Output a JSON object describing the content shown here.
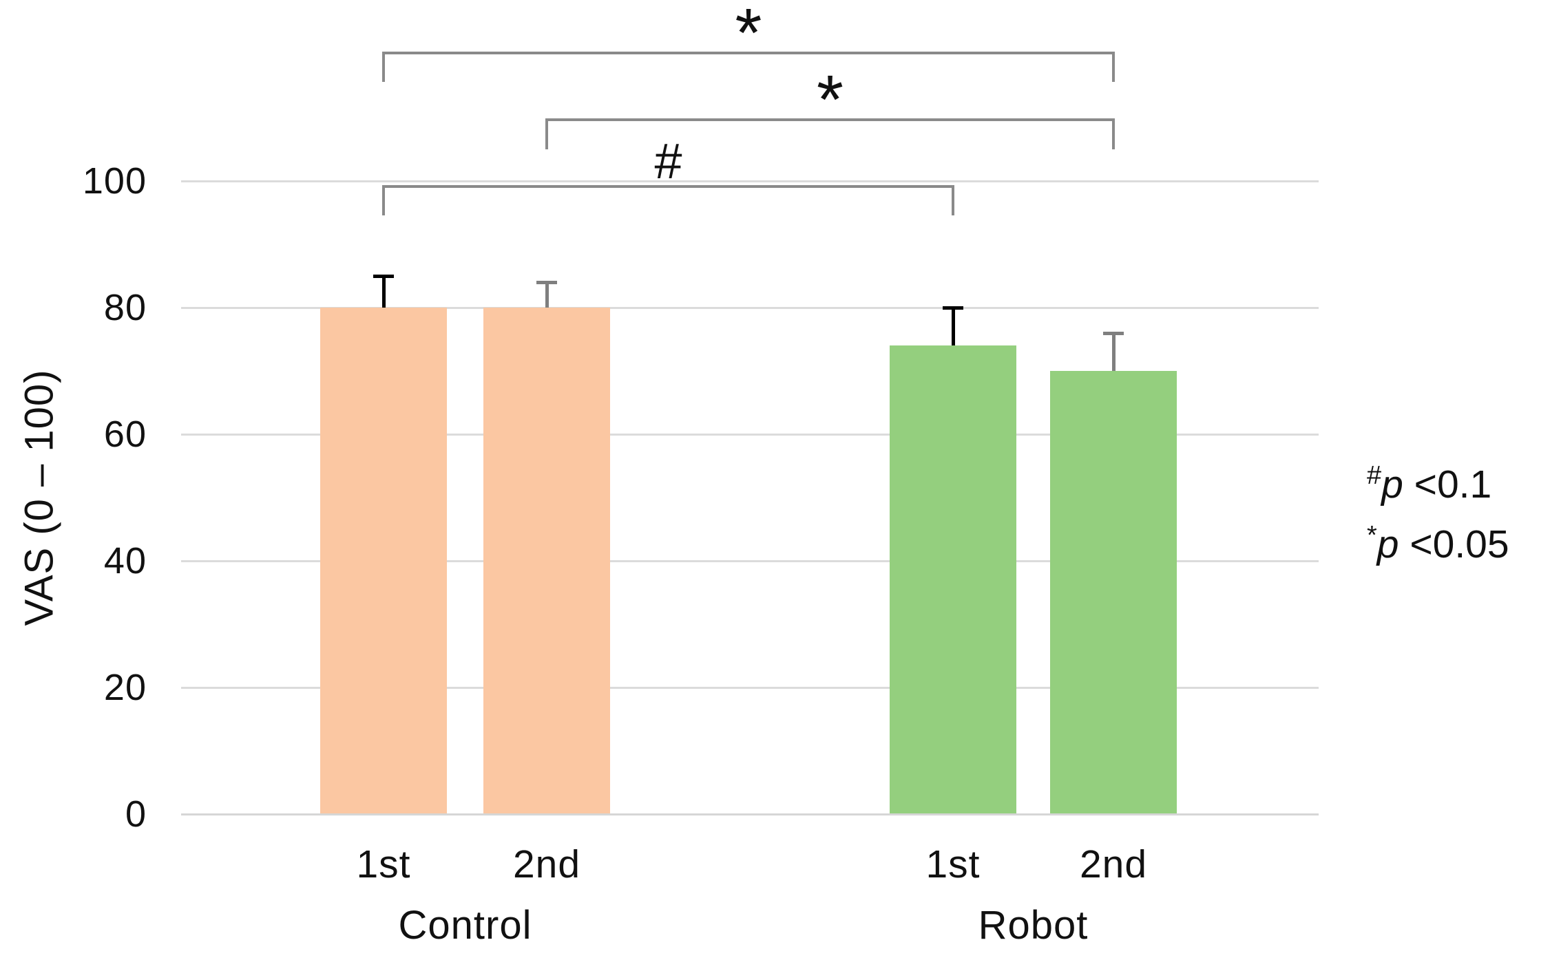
{
  "page": {
    "background": "#ffffff"
  },
  "chart_data": {
    "type": "bar",
    "title": "",
    "xlabel": "",
    "ylabel": "VAS (0 – 100)",
    "ylim": [
      0,
      100
    ],
    "yticks": [
      0,
      20,
      40,
      60,
      80,
      100
    ],
    "grid": true,
    "categories": [
      "Control 1st",
      "Control 2nd",
      "Robot 1st",
      "Robot 2nd"
    ],
    "bar_labels": [
      "1st",
      "2nd",
      "1st",
      "2nd"
    ],
    "groups": [
      {
        "label": "Control",
        "bar_indices": [
          0,
          1
        ]
      },
      {
        "label": "Robot",
        "bar_indices": [
          2,
          3
        ]
      }
    ],
    "series": [
      {
        "name": "VAS",
        "values": [
          80,
          80,
          74,
          70
        ]
      }
    ],
    "error_bars": {
      "type": "upper",
      "values": [
        85,
        84,
        80,
        76
      ]
    },
    "bar_colors": [
      "#FBC7A2",
      "#FBC7A2",
      "#94CF7E",
      "#94CF7E"
    ],
    "error_bar_colors": [
      "#000000",
      "#7F7F7F",
      "#000000",
      "#7F7F7F"
    ],
    "significance": [
      {
        "symbol": "*",
        "between": [
          "Control 1st",
          "Robot 2nd"
        ],
        "bar_indices": [
          0,
          3
        ]
      },
      {
        "symbol": "*",
        "between": [
          "Control 2nd",
          "Robot 2nd"
        ],
        "bar_indices": [
          1,
          3
        ]
      },
      {
        "symbol": "#",
        "between": [
          "Control 1st",
          "Robot 1st"
        ],
        "bar_indices": [
          0,
          2
        ]
      }
    ]
  },
  "legend": {
    "items": [
      {
        "symbol": "#",
        "text": "p <0.1"
      },
      {
        "symbol": "*",
        "text": "p <0.05"
      }
    ]
  },
  "colors": {
    "grid": "#DBDBDB",
    "axis": "#D6D6D6",
    "bracket": "#8A8A8A",
    "text": "#111111"
  }
}
